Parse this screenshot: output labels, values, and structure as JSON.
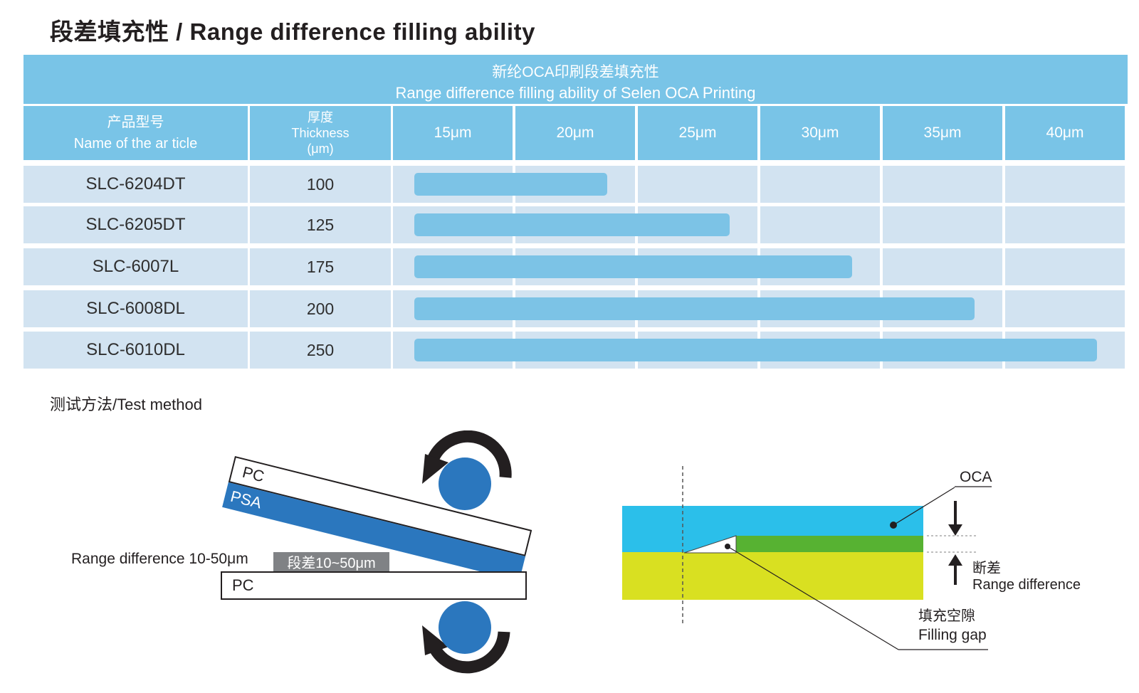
{
  "page": {
    "title": "段差填充性 / Range difference filling ability"
  },
  "table": {
    "title_zh": "新纶OCA印刷段差填充性",
    "title_en": "Range difference filling ability of Selen OCA Printing",
    "header": {
      "name_zh": "产品型号",
      "name_en": "Name of the ar ticle",
      "thickness_zh": "厚度",
      "thickness_en": "Thickness",
      "thickness_unit": "(μm)",
      "um_columns": [
        "15μm",
        "20μm",
        "25μm",
        "30μm",
        "35μm",
        "40μm"
      ]
    },
    "rows": [
      {
        "name": "SLC-6204DT",
        "thickness": "100",
        "fill_to_um": 20
      },
      {
        "name": "SLC-6205DT",
        "thickness": "125",
        "fill_to_um": 25
      },
      {
        "name": "SLC-6007L",
        "thickness": "175",
        "fill_to_um": 30
      },
      {
        "name": "SLC-6008DL",
        "thickness": "200",
        "fill_to_um": 35
      },
      {
        "name": "SLC-6010DL",
        "thickness": "250",
        "fill_to_um": 40
      }
    ]
  },
  "chart_data": {
    "type": "bar",
    "orientation": "horizontal",
    "title": "新纶OCA印刷段差填充性 / Range difference filling ability of Selen OCA Printing",
    "categories": [
      "SLC-6204DT",
      "SLC-6205DT",
      "SLC-6007L",
      "SLC-6008DL",
      "SLC-6010DL"
    ],
    "series": [
      {
        "name": "厚度 Thickness (μm)",
        "values": [
          100,
          125,
          175,
          200,
          250
        ]
      },
      {
        "name": "Range difference filling ability (μm)",
        "values": [
          20,
          25,
          30,
          35,
          40
        ]
      }
    ],
    "x_ticks": [
      "15μm",
      "20μm",
      "25μm",
      "30μm",
      "35μm",
      "40μm"
    ],
    "xlim": [
      15,
      40
    ],
    "grid": true,
    "legend_position": "none"
  },
  "test_method": {
    "section_label": "测试方法/Test method",
    "laminator": {
      "pc_top_label": "PC",
      "psa_label": "PSA",
      "pc_bottom_label": "PC",
      "range_label_en": "Range difference 10-50μm",
      "step_box_label": "段差10~50μm"
    },
    "cross_section": {
      "oca_label": "OCA",
      "range_zh": "断差",
      "range_en": "Range difference",
      "gap_zh": "填充空隙",
      "gap_en": "Filling gap"
    }
  },
  "colors": {
    "header_blue": "#79c4e7",
    "row_blue": "#d2e3f1",
    "bar_blue": "#7cc3e6",
    "ink": "#231f20",
    "psa_roller_blue": "#2b77be",
    "gray_box": "#808285",
    "oca_cyan": "#2bbfea",
    "filler_green": "#57b232",
    "substrate_yellow": "#d9e021"
  }
}
